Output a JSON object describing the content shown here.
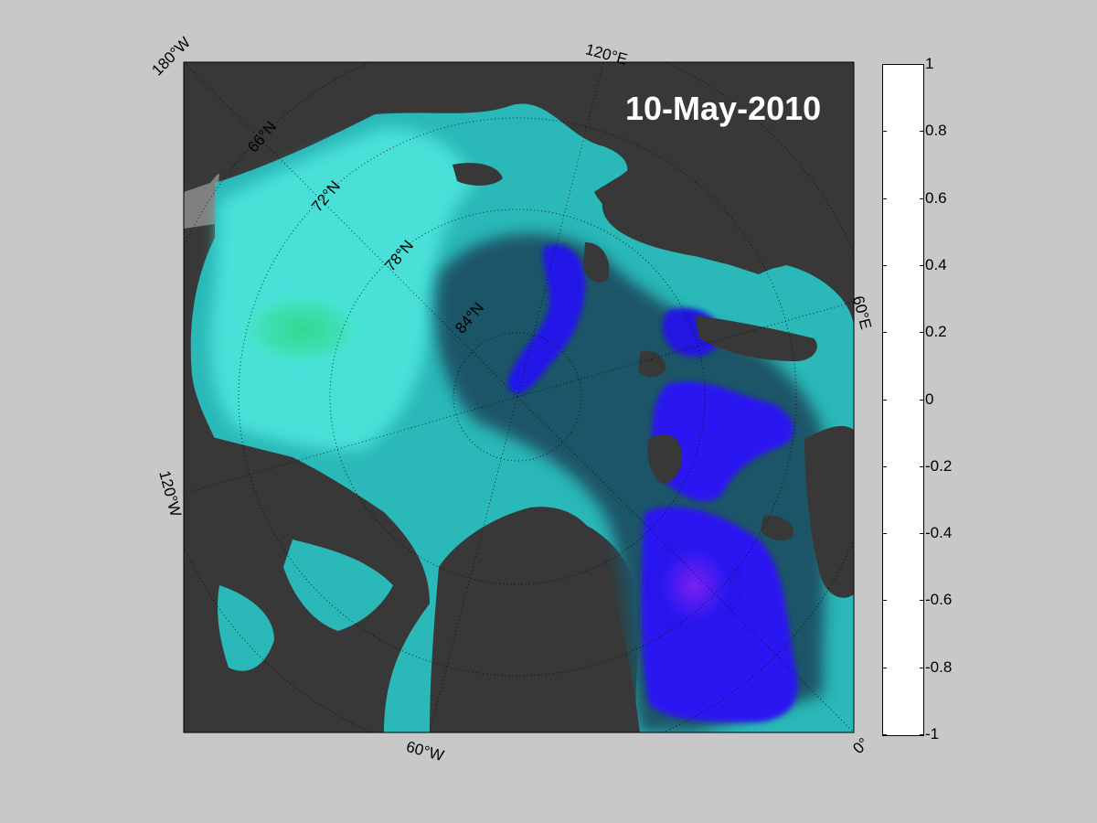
{
  "map": {
    "date_label": "10-May-2010",
    "projection": "north-polar-stereographic",
    "center_longitude_label": "",
    "lon_labels": [
      "180°W",
      "120°E",
      "60°E",
      "0°",
      "60°W",
      "120°W"
    ],
    "lat_labels": [
      "66°N",
      "72°N",
      "78°N",
      "84°N"
    ],
    "colors": {
      "background": "#c8c8c8",
      "land": "#383838",
      "coast_gray": "#808080",
      "frame": "#000000"
    }
  },
  "colorbar": {
    "min": -1,
    "max": 1,
    "ticks": [
      "1",
      "0.8",
      "0.6",
      "0.4",
      "0.2",
      "0",
      "-0.2",
      "-0.4",
      "-0.6",
      "-0.8",
      "-1"
    ],
    "colormap": [
      {
        "v": -1.0,
        "c": "#ffffff"
      },
      {
        "v": -0.8,
        "c": "#d89cf0"
      },
      {
        "v": -0.6,
        "c": "#9a2cf0"
      },
      {
        "v": -0.45,
        "c": "#1a10f0"
      },
      {
        "v": -0.4,
        "c": "#102a48"
      },
      {
        "v": -0.3,
        "c": "#1c5868"
      },
      {
        "v": -0.2,
        "c": "#2aa8b0"
      },
      {
        "v": -0.1,
        "c": "#48e8e0"
      },
      {
        "v": 0.0,
        "c": "#30d890"
      },
      {
        "v": 0.1,
        "c": "#10a030"
      },
      {
        "v": 0.2,
        "c": "#087018"
      },
      {
        "v": 0.3,
        "c": "#30b810"
      },
      {
        "v": 0.4,
        "c": "#b8e808"
      },
      {
        "v": 0.5,
        "c": "#f0e010"
      },
      {
        "v": 0.6,
        "c": "#f0a010"
      },
      {
        "v": 0.7,
        "c": "#f06010"
      },
      {
        "v": 0.8,
        "c": "#e82010"
      },
      {
        "v": 0.9,
        "c": "#a00808"
      },
      {
        "v": 1.0,
        "c": "#200000"
      }
    ]
  }
}
